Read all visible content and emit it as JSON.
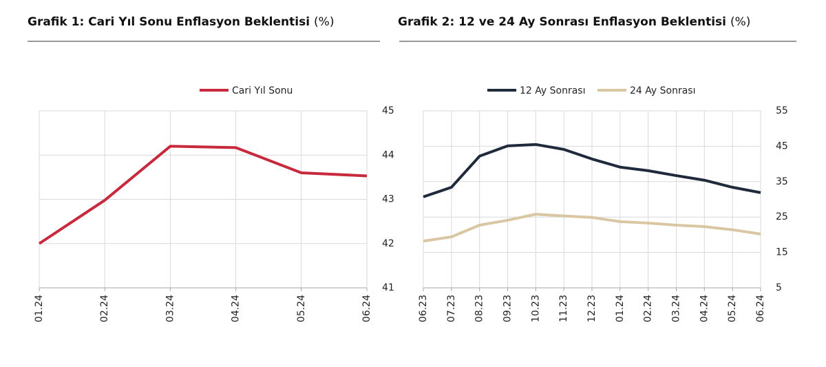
{
  "chart_data": [
    {
      "type": "line",
      "title": "Grafik 1: Cari Yıl Sonu Enflasyon Beklentisi",
      "title_unit": "(%)",
      "categories": [
        "01.24",
        "02.24",
        "03.24",
        "04.24",
        "05.24",
        "06.24"
      ],
      "series": [
        {
          "name": "Cari Yıl Sonu",
          "color": "#c8293d",
          "values": [
            42.0,
            42.98,
            44.2,
            44.17,
            43.6,
            43.53
          ]
        }
      ],
      "ylim": [
        41,
        45
      ],
      "yticks": [
        41,
        42,
        43,
        44,
        45
      ],
      "grid": true,
      "legend": "top"
    },
    {
      "type": "line",
      "title": "Grafik 2: 12 ve 24 Ay Sonrası Enflasyon Beklentisi",
      "title_unit": "(%)",
      "categories": [
        "06.23",
        "07.23",
        "08.23",
        "09.23",
        "10.23",
        "11.23",
        "12.23",
        "01.24",
        "02.24",
        "03.24",
        "04.24",
        "05.24",
        "06.24"
      ],
      "series": [
        {
          "name": "12 Ay Sonrası",
          "color": "#1f2a3c",
          "values": [
            30.7,
            33.4,
            42.2,
            45.1,
            45.5,
            44.1,
            41.4,
            39.1,
            38.1,
            36.7,
            35.4,
            33.4,
            31.9
          ]
        },
        {
          "name": "24 Ay Sonrası",
          "color": "#d9c7a3",
          "values": [
            18.2,
            19.4,
            22.7,
            24.1,
            25.8,
            25.3,
            24.9,
            23.7,
            23.3,
            22.7,
            22.3,
            21.4,
            20.2
          ]
        }
      ],
      "ylim": [
        5,
        55
      ],
      "yticks": [
        5,
        15,
        25,
        35,
        45,
        55
      ],
      "grid": true,
      "legend": "top"
    }
  ]
}
